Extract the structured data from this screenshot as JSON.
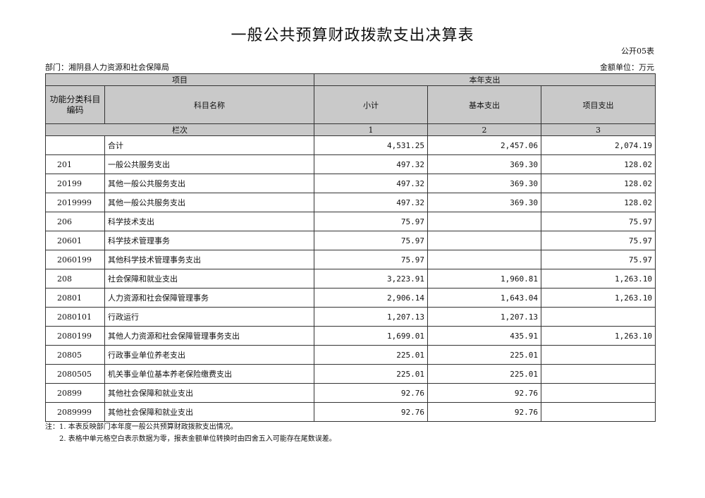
{
  "title": "一般公共预算财政拨款支出决算表",
  "table_no": "公开05表",
  "department": "部门：湘阴县人力资源和社会保障局",
  "unit": "金额单位：万元",
  "header": {
    "item": "项目",
    "this_year": "本年支出",
    "code": "功能分类科目编码",
    "name": "科目名称",
    "subtotal": "小计",
    "basic": "基本支出",
    "project": "项目支出",
    "col_index": "栏次",
    "c1": "1",
    "c2": "2",
    "c3": "3"
  },
  "rows": [
    {
      "code": "",
      "name": "合计",
      "subtotal": "4,531.25",
      "basic": "2,457.06",
      "project": "2,074.19"
    },
    {
      "code": "201",
      "name": "一般公共服务支出",
      "subtotal": "497.32",
      "basic": "369.30",
      "project": "128.02"
    },
    {
      "code": "20199",
      "name": "其他一般公共服务支出",
      "subtotal": "497.32",
      "basic": "369.30",
      "project": "128.02"
    },
    {
      "code": "2019999",
      "name": "其他一般公共服务支出",
      "subtotal": "497.32",
      "basic": "369.30",
      "project": "128.02"
    },
    {
      "code": "206",
      "name": "科学技术支出",
      "subtotal": "75.97",
      "basic": "",
      "project": "75.97"
    },
    {
      "code": "20601",
      "name": "科学技术管理事务",
      "subtotal": "75.97",
      "basic": "",
      "project": "75.97"
    },
    {
      "code": "2060199",
      "name": "其他科学技术管理事务支出",
      "subtotal": "75.97",
      "basic": "",
      "project": "75.97"
    },
    {
      "code": "208",
      "name": "社会保障和就业支出",
      "subtotal": "3,223.91",
      "basic": "1,960.81",
      "project": "1,263.10"
    },
    {
      "code": "20801",
      "name": "人力资源和社会保障管理事务",
      "subtotal": "2,906.14",
      "basic": "1,643.04",
      "project": "1,263.10"
    },
    {
      "code": "2080101",
      "name": "行政运行",
      "subtotal": "1,207.13",
      "basic": "1,207.13",
      "project": ""
    },
    {
      "code": "2080199",
      "name": "其他人力资源和社会保障管理事务支出",
      "subtotal": "1,699.01",
      "basic": "435.91",
      "project": "1,263.10"
    },
    {
      "code": "20805",
      "name": "行政事业单位养老支出",
      "subtotal": "225.01",
      "basic": "225.01",
      "project": ""
    },
    {
      "code": "2080505",
      "name": "机关事业单位基本养老保险缴费支出",
      "subtotal": "225.01",
      "basic": "225.01",
      "project": ""
    },
    {
      "code": "20899",
      "name": "其他社会保障和就业支出",
      "subtotal": "92.76",
      "basic": "92.76",
      "project": ""
    },
    {
      "code": "2089999",
      "name": "其他社会保障和就业支出",
      "subtotal": "92.76",
      "basic": "92.76",
      "project": ""
    }
  ],
  "notes": [
    "注：1. 本表反映部门本年度一般公共预算财政拨款支出情况。",
    "2. 表格中单元格空白表示数据为零，报表金额单位转换时由四舍五入可能存在尾数误差。"
  ]
}
